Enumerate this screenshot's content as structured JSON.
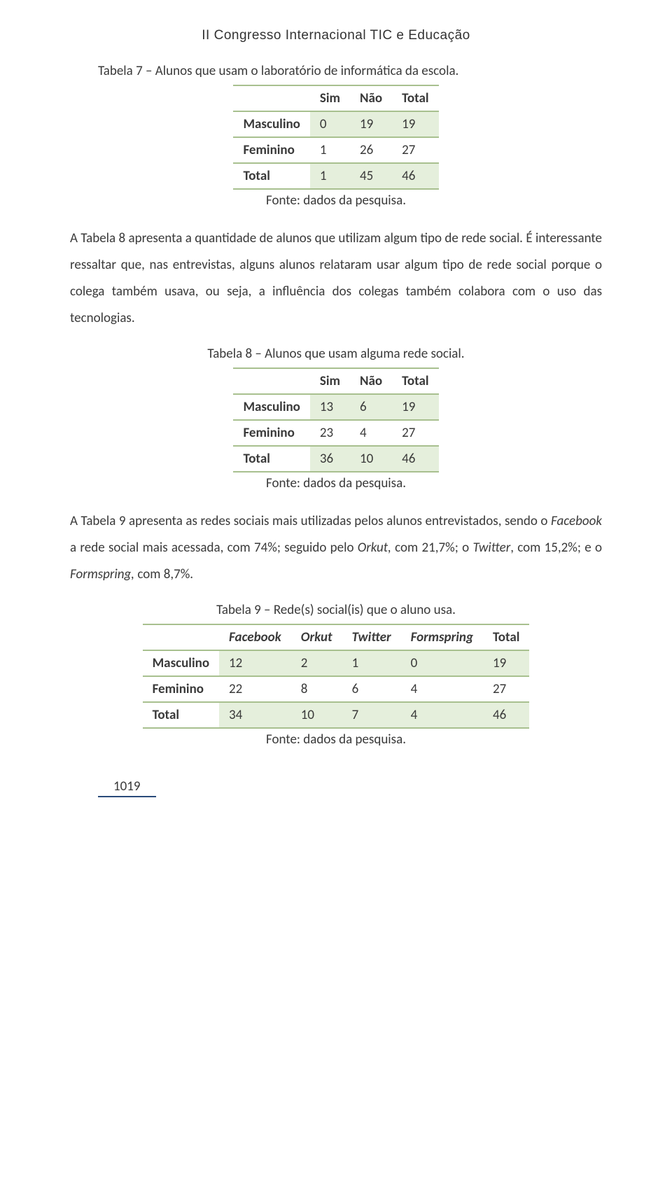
{
  "header": "II Congresso Internacional TIC e Educação",
  "table7": {
    "caption": "Tabela 7 – Alunos que usam o laboratório de informática da escola.",
    "columns": [
      "Sim",
      "Não",
      "Total"
    ],
    "rows": [
      {
        "label": "Masculino",
        "vals": [
          "0",
          "19",
          "19"
        ]
      },
      {
        "label": "Feminino",
        "vals": [
          "1",
          "26",
          "27"
        ]
      }
    ],
    "total": {
      "label": "Total",
      "vals": [
        "1",
        "45",
        "46"
      ]
    },
    "source": "Fonte: dados da pesquisa."
  },
  "para1_a": "A Tabela 8 apresenta a quantidade de alunos que utilizam algum tipo de rede social. É interessante ressaltar que, nas entrevistas, alguns alunos relataram usar algum tipo de rede social porque o colega também usava, ou seja, a influência dos colegas também colabora com o uso das tecnologias.",
  "table8": {
    "caption": "Tabela 8 – Alunos que usam alguma rede social.",
    "columns": [
      "Sim",
      "Não",
      "Total"
    ],
    "rows": [
      {
        "label": "Masculino",
        "vals": [
          "13",
          "6",
          "19"
        ]
      },
      {
        "label": "Feminino",
        "vals": [
          "23",
          "4",
          "27"
        ]
      }
    ],
    "total": {
      "label": "Total",
      "vals": [
        "36",
        "10",
        "46"
      ]
    },
    "source": "Fonte: dados da pesquisa."
  },
  "para2_parts": [
    {
      "t": "A Tabela 9 apresenta as redes sociais mais utilizadas pelos alunos entrevistados, sendo o ",
      "i": false
    },
    {
      "t": "Facebook",
      "i": true
    },
    {
      "t": " a rede social mais acessada, com 74%; seguido pelo ",
      "i": false
    },
    {
      "t": "Orkut,",
      "i": true
    },
    {
      "t": " com 21,7%; o ",
      "i": false
    },
    {
      "t": "Twitter",
      "i": true
    },
    {
      "t": ", com 15,2%; e o ",
      "i": false
    },
    {
      "t": "Formspring,",
      "i": true
    },
    {
      "t": " com 8,7%.",
      "i": false
    }
  ],
  "table9": {
    "caption": "Tabela 9 – Rede(s) social(is) que o aluno usa.",
    "columns": [
      "Facebook",
      "Orkut",
      "Twitter",
      "Formspring",
      "Total"
    ],
    "col_italic": [
      true,
      true,
      true,
      true,
      false
    ],
    "rows": [
      {
        "label": "Masculino",
        "vals": [
          "12",
          "2",
          "1",
          "0",
          "19"
        ]
      },
      {
        "label": "Feminino",
        "vals": [
          "22",
          "8",
          "6",
          "4",
          "27"
        ]
      }
    ],
    "total": {
      "label": "Total",
      "vals": [
        "34",
        "10",
        "7",
        "4",
        "46"
      ]
    },
    "source": "Fonte: dados da pesquisa."
  },
  "page_number": "1019",
  "colors": {
    "table_border": "#a8c08f",
    "row_green": "#e5efdc",
    "text": "#3a3a3a",
    "pagenum_border": "#2a4a7a"
  }
}
